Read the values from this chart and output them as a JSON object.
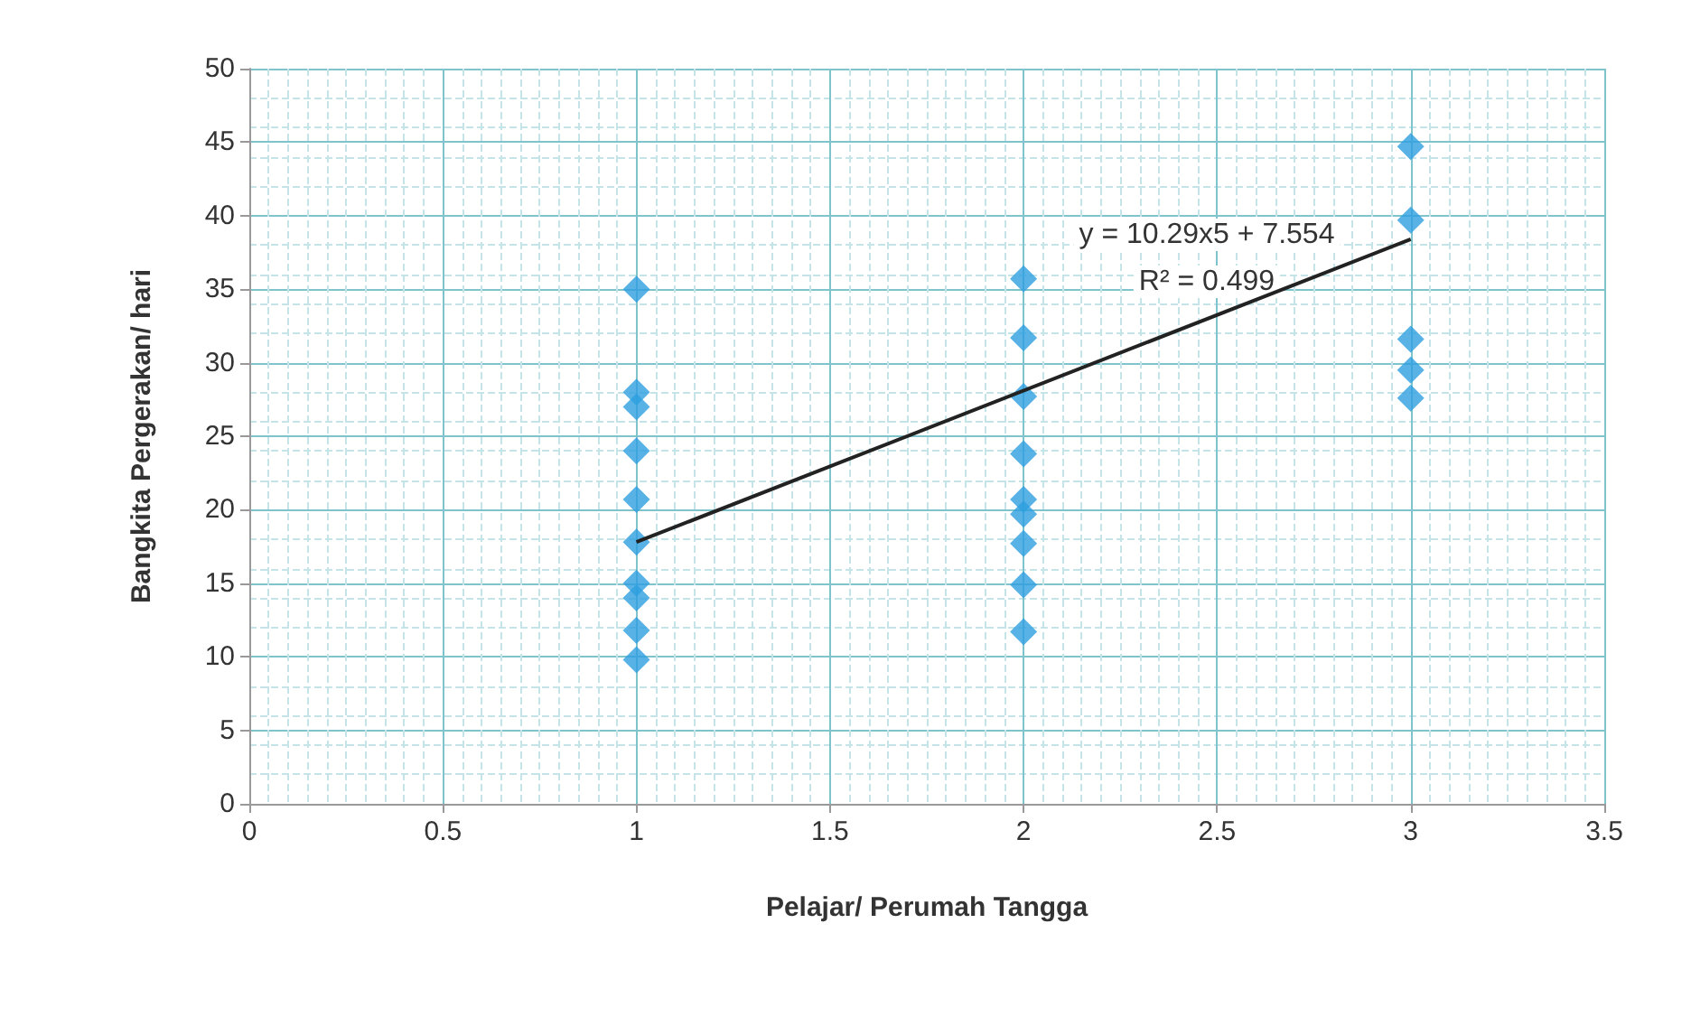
{
  "chart_data": {
    "type": "scatter",
    "xlabel": "Pelajar/ Perumah Tangga",
    "ylabel": "Bangkita Pergerakan/ hari",
    "xlim": [
      0,
      3.5
    ],
    "xticks": [
      0,
      0.5,
      1,
      1.5,
      2,
      2.5,
      3,
      3.5
    ],
    "ylim": [
      0,
      50
    ],
    "yticks": [
      0,
      5,
      10,
      15,
      20,
      25,
      30,
      35,
      40,
      45,
      50
    ],
    "grid": true,
    "marker": "diamond",
    "series": [
      {
        "color": "#2e9fe0",
        "x": [
          1,
          1,
          1,
          1,
          1,
          1,
          1,
          1,
          1,
          1,
          2,
          2,
          2,
          2,
          2,
          2,
          2,
          2,
          2,
          3,
          3,
          3,
          3,
          3
        ],
        "values": [
          35,
          28,
          27,
          24,
          20.7,
          17.8,
          15,
          14,
          11.8,
          9.8,
          35.7,
          31.7,
          27.7,
          23.8,
          20.7,
          19.7,
          17.7,
          14.9,
          11.7,
          44.7,
          39.7,
          31.6,
          29.5,
          27.6
        ]
      },
      {
        "type": "line",
        "color": "#222222",
        "x": [
          1,
          3
        ],
        "values": [
          17.8,
          38.4
        ],
        "marker": "none"
      }
    ],
    "annotations": [
      "y = 10.29x5 + 7.554",
      "R² = 0.499"
    ]
  }
}
